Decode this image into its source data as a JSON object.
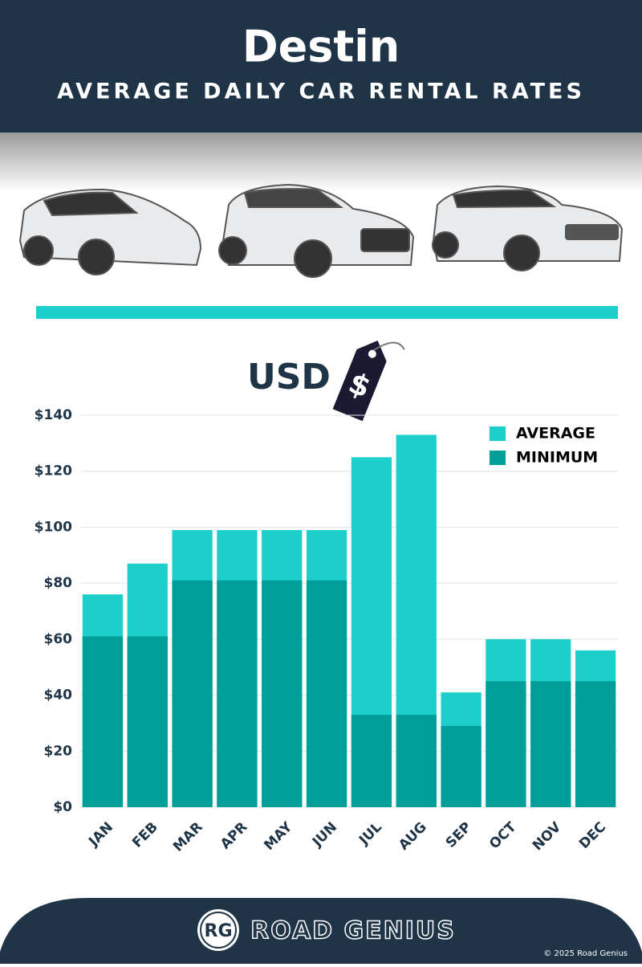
{
  "header": {
    "title": "Destin",
    "subtitle": "AVERAGE DAILY CAR RENTAL RATES"
  },
  "chart_data": {
    "type": "bar",
    "overlap": true,
    "unit_label": "USD",
    "tag_symbol": "$",
    "categories": [
      "JAN",
      "FEB",
      "MAR",
      "APR",
      "MAY",
      "JUN",
      "JUL",
      "AUG",
      "SEP",
      "OCT",
      "NOV",
      "DEC"
    ],
    "series": [
      {
        "name": "AVERAGE",
        "color": "#1ccfca",
        "values": [
          76,
          87,
          99,
          99,
          99,
          99,
          125,
          133,
          41,
          60,
          60,
          56
        ]
      },
      {
        "name": "MINIMUM",
        "color": "#009e98",
        "values": [
          61,
          61,
          81,
          81,
          81,
          81,
          33,
          33,
          29,
          45,
          45,
          45
        ]
      }
    ],
    "ylim": [
      0,
      140
    ],
    "yticks": [
      {
        "value": 0,
        "label": "$0"
      },
      {
        "value": 20,
        "label": "$20"
      },
      {
        "value": 40,
        "label": "$40"
      },
      {
        "value": 60,
        "label": "$60"
      },
      {
        "value": 80,
        "label": "$80"
      },
      {
        "value": 100,
        "label": "$100"
      },
      {
        "value": 120,
        "label": "$120"
      },
      {
        "value": 140,
        "label": "$140"
      }
    ],
    "grid": true,
    "legend": "top-right"
  },
  "footer": {
    "logo": "RG",
    "brand": "ROAD GENIUS",
    "copyright": "© 2025 Road Genius"
  }
}
